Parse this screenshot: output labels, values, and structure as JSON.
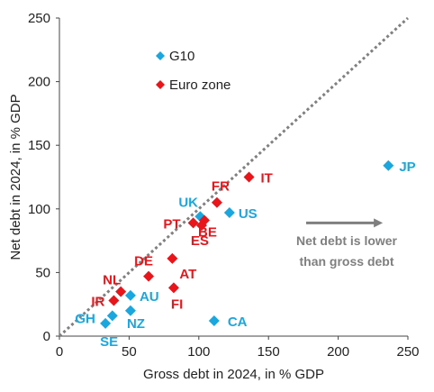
{
  "chart_data": {
    "type": "scatter",
    "title": "",
    "xlabel": "Gross debt in 2024, in % GDP",
    "ylabel": "Net debt in 2024, in % GDP",
    "xlim": [
      0,
      250
    ],
    "ylim": [
      0,
      250
    ],
    "xticks": [
      0,
      50,
      100,
      150,
      200,
      250
    ],
    "yticks": [
      0,
      50,
      100,
      150,
      200,
      250
    ],
    "grid": false,
    "legend_position": "top-left",
    "reference_line": {
      "style": "dotted",
      "color": "#808080",
      "from": [
        0,
        0
      ],
      "to": [
        250,
        250
      ]
    },
    "series": [
      {
        "name": "G10",
        "color": "#1aa7e0",
        "points": [
          {
            "label": "JP",
            "x": 236,
            "y": 134
          },
          {
            "label": "UK",
            "x": 101,
            "y": 94
          },
          {
            "label": "US",
            "x": 122,
            "y": 97
          },
          {
            "label": "CA",
            "x": 111,
            "y": 12
          },
          {
            "label": "AU",
            "x": 51,
            "y": 32
          },
          {
            "label": "NZ",
            "x": 51,
            "y": 20
          },
          {
            "label": "GH",
            "x": 38,
            "y": 16
          },
          {
            "label": "SE",
            "x": 33,
            "y": 10
          }
        ]
      },
      {
        "name": "Euro zone",
        "color": "#e8151b",
        "points": [
          {
            "label": "IT",
            "x": 136,
            "y": 125
          },
          {
            "label": "FR",
            "x": 113,
            "y": 105
          },
          {
            "label": "PT",
            "x": 96,
            "y": 89
          },
          {
            "label": "BE",
            "x": 104,
            "y": 91
          },
          {
            "label": "ES",
            "x": 102,
            "y": 87
          },
          {
            "label": "DE",
            "x": 64,
            "y": 47
          },
          {
            "label": "AT",
            "x": 81,
            "y": 61
          },
          {
            "label": "FI",
            "x": 82,
            "y": 38
          },
          {
            "label": "NL",
            "x": 44,
            "y": 35
          },
          {
            "label": "IR",
            "x": 39,
            "y": 28
          }
        ]
      }
    ],
    "annotation": {
      "lines": [
        "Net debt is lower",
        "than gross debt"
      ],
      "arrow_from": [
        177,
        89
      ],
      "arrow_to": [
        232,
        89
      ]
    }
  }
}
